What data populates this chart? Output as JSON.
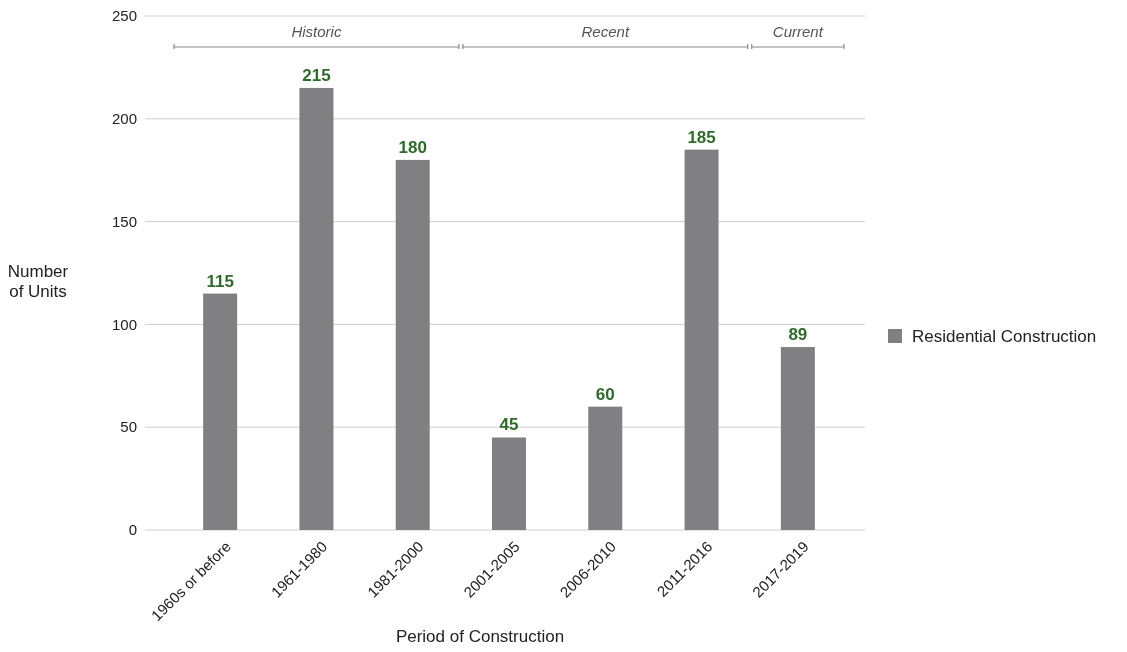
{
  "chart_data": {
    "type": "bar",
    "xlabel": "Period of Construction",
    "ylabel": "Number of Units",
    "categories": [
      "1960s or before",
      "1961-1980",
      "1981-2000",
      "2001-2005",
      "2006-2010",
      "2011-2016",
      "2017-2019"
    ],
    "series": [
      {
        "name": "Residential Construction",
        "color": "#808083",
        "values": [
          115,
          215,
          180,
          45,
          60,
          185,
          89
        ]
      }
    ],
    "ylim": [
      0,
      250
    ],
    "yticks": [
      0,
      50,
      100,
      150,
      200,
      250
    ],
    "grid": "y",
    "legend": "right",
    "data_labels": true,
    "annotations": [
      "Historic",
      "Recent",
      "Current"
    ]
  }
}
